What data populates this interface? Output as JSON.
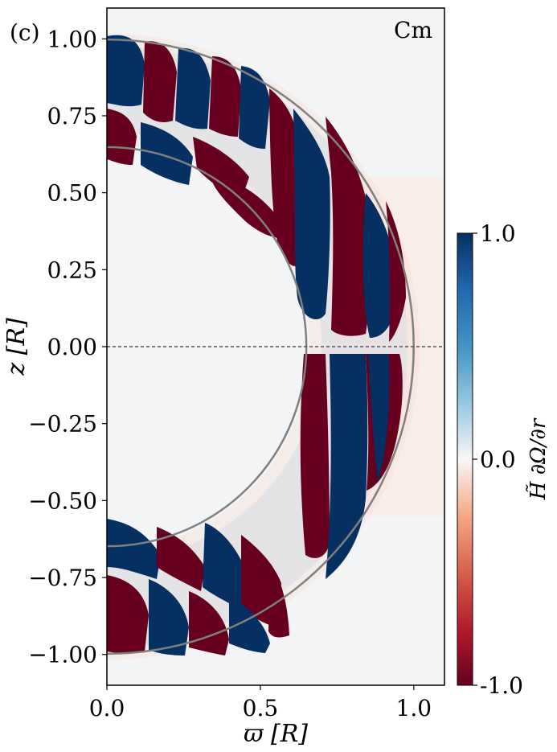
{
  "panel_label": "(c)",
  "chart_data": {
    "type": "heatmap",
    "annotation": "Cm",
    "xlabel": "ϖ [R]",
    "ylabel": "z [R]",
    "xlim": [
      0.0,
      1.1
    ],
    "ylim": [
      -1.1,
      1.1
    ],
    "x_ticks": [
      {
        "value": 0.0,
        "label": "0.0"
      },
      {
        "value": 0.5,
        "label": "0.5"
      },
      {
        "value": 1.0,
        "label": "1.0"
      }
    ],
    "y_ticks": [
      {
        "value": 1.0,
        "label": "1.00"
      },
      {
        "value": 0.75,
        "label": "0.75"
      },
      {
        "value": 0.5,
        "label": "0.50"
      },
      {
        "value": 0.25,
        "label": "0.25"
      },
      {
        "value": 0.0,
        "label": "0.00"
      },
      {
        "value": -0.25,
        "label": "−0.25"
      },
      {
        "value": -0.5,
        "label": "−0.50"
      },
      {
        "value": -0.75,
        "label": "−0.75"
      },
      {
        "value": -1.0,
        "label": "−1.00"
      }
    ],
    "reference_circles_r": [
      1.0,
      0.65
    ],
    "equator_z": 0.0,
    "colorbar": {
      "label": "H̃ ∂Ω/∂r",
      "min": -1.0,
      "max": 1.0,
      "tick_labels": [
        "1.0",
        "0.0",
        "-1.0"
      ],
      "tick_values": [
        1.0,
        0.0,
        -1.0
      ],
      "colormap": "RdBu"
    },
    "colors": {
      "dark_blue": "#053061",
      "dark_red": "#67001f",
      "light": "#f2f4f5",
      "pale_red": "#fbe8df",
      "guide_gray": "#808080"
    }
  }
}
